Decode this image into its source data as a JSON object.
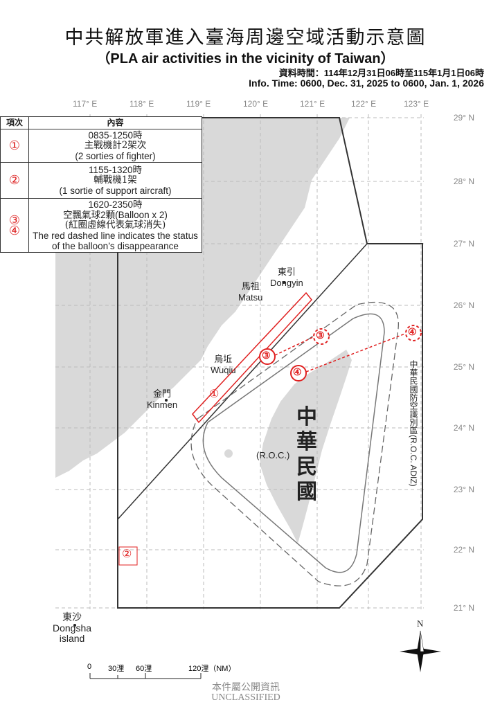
{
  "title": "中共解放軍進入臺海周邊空域活動示意圖",
  "subtitle": "（PLA air activities in the vicinity of Taiwan）",
  "info_zh": "資料時間：114年12月31日06時至115年1月1日06時",
  "info_en": "Info. Time: 0600, Dec. 31, 2025 to 0600, Jan. 1, 2026",
  "longitudes": [
    "117° E",
    "118° E",
    "119° E",
    "120° E",
    "121° E",
    "122° E",
    "123° E"
  ],
  "latitudes": [
    "29° N",
    "28° N",
    "27° N",
    "26° N",
    "25° N",
    "24° N",
    "23° N",
    "22° N",
    "21° N"
  ],
  "legend": {
    "header": [
      "項次",
      "內容"
    ],
    "rows": [
      {
        "num": "①",
        "lines": [
          "0835-1250時",
          "主戰機計2架次",
          "(2 sorties of fighter)"
        ]
      },
      {
        "num": "②",
        "lines": [
          "1155-1320時",
          "輔戰機1架",
          "(1 sortie of support aircraft)"
        ]
      },
      {
        "num": "③",
        "num2": "④",
        "lines": [
          "1620-2350時",
          "空飄氣球2顆(Balloon x 2)",
          "(紅圈虛線代表氣球消失)",
          "The red dashed line indicates the status of the balloon’s disappearance"
        ]
      }
    ]
  },
  "places": {
    "dongyin_zh": "東引",
    "dongyin_en": "Dongyin",
    "matsu_zh": "馬祖",
    "matsu_en": "Matsu",
    "wuqiu_zh": "烏坵",
    "wuqiu_en": "Wuqiu",
    "kinmen_zh": "金門",
    "kinmen_en": "Kinmen",
    "dongsha_zh": "東沙",
    "dongsha_en": "Dongsha",
    "dongsha_en2": "island",
    "roc": "(R.O.C.)",
    "roc_zh": [
      "中",
      "華",
      "民",
      "國"
    ],
    "adiz": "中華民國防空識別區(R.O.C. ADIZ)"
  },
  "markers": {
    "m1": "①",
    "m2": "②",
    "m3": "③",
    "m4": "④"
  },
  "scale": {
    "labels": [
      "0",
      "30浬",
      "60浬",
      "120浬（NM）"
    ]
  },
  "compass": "N",
  "footer": {
    "zh": "本件屬公開資訊",
    "en": "UNCLASSIFIED"
  },
  "colors": {
    "land": "#d9d9d9",
    "activity": "#e02020",
    "grid": "#bbbbbb",
    "adiz": "#777777"
  }
}
